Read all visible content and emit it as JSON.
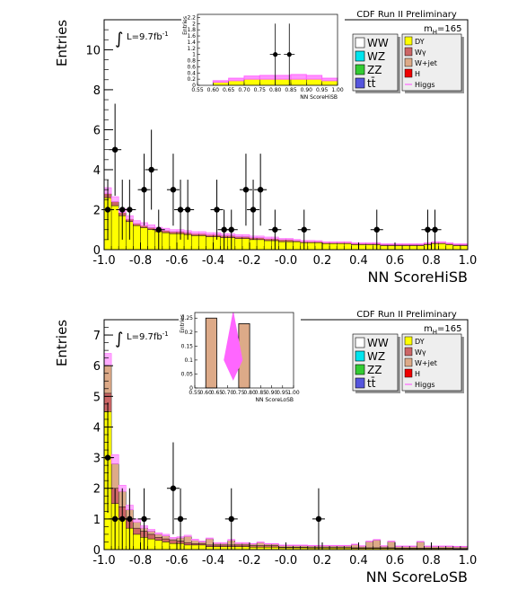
{
  "colors": {
    "WW": "#ffffff",
    "WZ": "#00e5ee",
    "ZZ": "#33cc33",
    "tt": "#5555dd",
    "DY": "#ffff00",
    "Wgamma": "#cc6666",
    "Wjet": "#ddaa88",
    "H": "#ee0000",
    "Higgs": "#ff66ff",
    "data": "#000000"
  },
  "chart_data": [
    {
      "type": "histogram",
      "title": "CDF Run II Preliminary",
      "xlabel": "NN ScoreHiSB",
      "ylabel": "Entries",
      "lumi_label": "L=9.7fb",
      "lumi_exp": "-1",
      "mass_label": "m",
      "mass_sub": "H",
      "mass_value": "=165",
      "xlim": [
        -1.0,
        1.0
      ],
      "ylim": [
        0,
        11.5
      ],
      "xticks": [
        "-1.0",
        "-0.8",
        "-0.6",
        "-0.4",
        "-0.2",
        "-0.0",
        "0.2",
        "0.4",
        "0.6",
        "0.8",
        "1.0"
      ],
      "yticks": [
        "0",
        "2",
        "4",
        "6",
        "8",
        "10"
      ],
      "legend_left": [
        "WW",
        "WZ",
        "ZZ",
        "tt̄"
      ],
      "legend_right": [
        "DY",
        "Wγ",
        "W+jet",
        "H",
        "Higgs"
      ],
      "background_bins": {
        "x_start": -1.0,
        "width": 0.04,
        "dy": [
          2.6,
          2.2,
          1.7,
          1.4,
          1.2,
          1.1,
          1.0,
          0.9,
          0.85,
          0.8,
          0.8,
          0.75,
          0.7,
          0.7,
          0.65,
          0.65,
          0.6,
          0.6,
          0.55,
          0.55,
          0.5,
          0.5,
          0.45,
          0.45,
          0.4,
          0.4,
          0.4,
          0.35,
          0.35,
          0.35,
          0.3,
          0.3,
          0.3,
          0.3,
          0.25,
          0.25,
          0.25,
          0.25,
          0.2,
          0.2,
          0.2,
          0.2,
          0.2,
          0.2,
          0.25,
          0.3,
          0.3,
          0.25,
          0.2,
          0.2
        ],
        "wgamma": [
          0.2,
          0.2,
          0.15,
          0.12,
          0.1,
          0.1,
          0.1,
          0.1,
          0.1,
          0.1,
          0.1,
          0.1,
          0.1,
          0.1,
          0.1,
          0.1,
          0.1,
          0.1,
          0.1,
          0.1,
          0.1,
          0.1,
          0.1,
          0.1,
          0.1,
          0.1,
          0.05,
          0.05,
          0.05,
          0.05,
          0.05,
          0.05,
          0.05,
          0.05,
          0.05,
          0.05,
          0.05,
          0.05,
          0.05,
          0.05,
          0.05,
          0.05,
          0.05,
          0.05,
          0.05,
          0.05,
          0.05,
          0.05,
          0.05,
          0.05
        ],
        "higgs": [
          0.3,
          0.25,
          0.2,
          0.18,
          0.15,
          0.15,
          0.14,
          0.12,
          0.12,
          0.1,
          0.1,
          0.1,
          0.1,
          0.1,
          0.1,
          0.1,
          0.1,
          0.1,
          0.1,
          0.1,
          0.08,
          0.08,
          0.08,
          0.08,
          0.06,
          0.06,
          0.06,
          0.06,
          0.06,
          0.05,
          0.05,
          0.05,
          0.05,
          0.05,
          0.05,
          0.05,
          0.05,
          0.05,
          0.05,
          0.05,
          0.05,
          0.05,
          0.05,
          0.05,
          0.05,
          0.05,
          0.05,
          0.05,
          0.05,
          0.05
        ]
      },
      "data_points": [
        {
          "x": -0.98,
          "y": 2,
          "err": 1.5
        },
        {
          "x": -0.94,
          "y": 5,
          "err": 2.3
        },
        {
          "x": -0.9,
          "y": 2,
          "err": 1.5
        },
        {
          "x": -0.86,
          "y": 2,
          "err": 1.5
        },
        {
          "x": -0.78,
          "y": 3,
          "err": 1.8
        },
        {
          "x": -0.74,
          "y": 4,
          "err": 2.0
        },
        {
          "x": -0.7,
          "y": 1,
          "err": 1.0
        },
        {
          "x": -0.62,
          "y": 3,
          "err": 1.8
        },
        {
          "x": -0.58,
          "y": 2,
          "err": 1.5
        },
        {
          "x": -0.54,
          "y": 2,
          "err": 1.5
        },
        {
          "x": -0.38,
          "y": 2,
          "err": 1.5
        },
        {
          "x": -0.34,
          "y": 1,
          "err": 1.0
        },
        {
          "x": -0.3,
          "y": 1,
          "err": 1.0
        },
        {
          "x": -0.22,
          "y": 3,
          "err": 1.8
        },
        {
          "x": -0.18,
          "y": 2,
          "err": 1.5
        },
        {
          "x": -0.14,
          "y": 3,
          "err": 1.8
        },
        {
          "x": -0.06,
          "y": 1,
          "err": 1.0
        },
        {
          "x": 0.1,
          "y": 1,
          "err": 1.0
        },
        {
          "x": 0.5,
          "y": 1,
          "err": 1.0
        },
        {
          "x": 0.78,
          "y": 1,
          "err": 1.0
        },
        {
          "x": 0.82,
          "y": 1,
          "err": 1.0
        }
      ],
      "inset": {
        "xlabel": "NN ScoreHiSB",
        "ylabel": "Entries",
        "xlim": [
          0.55,
          1.0
        ],
        "ylim": [
          0,
          2.3
        ],
        "xticks": [
          "0.55",
          "0.60",
          "0.65",
          "0.70",
          "0.75",
          "0.80",
          "0.85",
          "0.90",
          "0.95",
          "1.00"
        ],
        "yticks": [
          "0",
          "0.2",
          "0.4",
          "0.6",
          "0.8",
          "1",
          "1.2",
          "1.4",
          "1.6",
          "1.8",
          "2",
          "2.2"
        ],
        "background_bins": {
          "x_start": 0.6,
          "width": 0.05,
          "dy": [
            0.1,
            0.15,
            0.2,
            0.2,
            0.2,
            0.2,
            0.2,
            0.15
          ],
          "higgs": [
            0.05,
            0.08,
            0.1,
            0.12,
            0.12,
            0.15,
            0.12,
            0.08
          ]
        },
        "data_points": [
          {
            "x": 0.8,
            "y": 1,
            "err": 1.0
          },
          {
            "x": 0.845,
            "y": 1,
            "err": 1.0
          }
        ]
      }
    },
    {
      "type": "histogram",
      "title": "CDF Run II Preliminary",
      "xlabel": "NN ScoreLoSB",
      "ylabel": "Entries",
      "lumi_label": "L=9.7fb",
      "lumi_exp": "-1",
      "mass_label": "m",
      "mass_sub": "H",
      "mass_value": "=165",
      "xlim": [
        -1.0,
        1.0
      ],
      "ylim": [
        0,
        7.5
      ],
      "xticks": [
        "-1.0",
        "-0.8",
        "-0.6",
        "-0.4",
        "-0.2",
        "-0.0",
        "0.2",
        "0.4",
        "0.6",
        "0.8",
        "1.0"
      ],
      "yticks": [
        "0",
        "1",
        "2",
        "3",
        "4",
        "5",
        "6",
        "7"
      ],
      "legend_left": [
        "WW",
        "WZ",
        "ZZ",
        "tt̄"
      ],
      "legend_right": [
        "DY",
        "Wγ",
        "W+jet",
        "H",
        "Higgs"
      ],
      "background_bins": {
        "x_start": -1.0,
        "width": 0.04,
        "dy": [
          4.5,
          1.5,
          1.0,
          0.7,
          0.5,
          0.4,
          0.35,
          0.3,
          0.25,
          0.2,
          0.2,
          0.15,
          0.15,
          0.15,
          0.1,
          0.1,
          0.1,
          0.1,
          0.1,
          0.1,
          0.08,
          0.08,
          0.08,
          0.08,
          0.06,
          0.06,
          0.06,
          0.06,
          0.05,
          0.05,
          0.05,
          0.05,
          0.05,
          0.05,
          0.04,
          0.04,
          0.04,
          0.04,
          0.04,
          0.04,
          0.03,
          0.03,
          0.03,
          0.03,
          0.03,
          0.03,
          0.03,
          0.03,
          0.02,
          0.02
        ],
        "wgamma": [
          0.6,
          0.5,
          0.4,
          0.3,
          0.2,
          0.2,
          0.15,
          0.1,
          0.1,
          0.1,
          0.08,
          0.08,
          0.05,
          0.05,
          0.05,
          0.05,
          0.05,
          0.05,
          0.05,
          0.05,
          0.05,
          0.05,
          0.05,
          0.05,
          0.02,
          0.02,
          0.02,
          0.02,
          0.02,
          0.02,
          0.02,
          0.02,
          0.02,
          0.02,
          0.02,
          0.02,
          0.02,
          0.02,
          0.02,
          0.02,
          0.02,
          0.02,
          0.02,
          0.02,
          0.02,
          0.02,
          0.02,
          0.02,
          0.02,
          0.02
        ],
        "wjet": [
          0.9,
          0.8,
          0.5,
          0.3,
          0.2,
          0.1,
          0.1,
          0.1,
          0.1,
          0.05,
          0.1,
          0.2,
          0.1,
          0.05,
          0.2,
          0.05,
          0.05,
          0.15,
          0.05,
          0.05,
          0.05,
          0.1,
          0.05,
          0.05,
          0.05,
          0.05,
          0.05,
          0.05,
          0.05,
          0.05,
          0.05,
          0.05,
          0.05,
          0.05,
          0.1,
          0.05,
          0.2,
          0.25,
          0.05,
          0.2,
          0.05,
          0.05,
          0.05,
          0.2,
          0.05,
          0.05,
          0.05,
          0.05,
          0.05,
          0.05
        ],
        "higgs": [
          0.4,
          0.3,
          0.2,
          0.15,
          0.1,
          0.08,
          0.06,
          0.05,
          0.05,
          0.05,
          0.04,
          0.04,
          0.04,
          0.03,
          0.03,
          0.03,
          0.03,
          0.03,
          0.03,
          0.03,
          0.02,
          0.02,
          0.02,
          0.02,
          0.02,
          0.02,
          0.02,
          0.02,
          0.02,
          0.02,
          0.02,
          0.02,
          0.02,
          0.02,
          0.02,
          0.02,
          0.02,
          0.02,
          0.02,
          0.02,
          0.02,
          0.02,
          0.02,
          0.02,
          0.02,
          0.02,
          0.02,
          0.02,
          0.02,
          0.02
        ]
      },
      "data_points": [
        {
          "x": -0.98,
          "y": 3,
          "err": 1.8
        },
        {
          "x": -0.94,
          "y": 1,
          "err": 1.0
        },
        {
          "x": -0.9,
          "y": 1,
          "err": 1.0
        },
        {
          "x": -0.86,
          "y": 1,
          "err": 1.0
        },
        {
          "x": -0.78,
          "y": 1,
          "err": 1.0
        },
        {
          "x": -0.62,
          "y": 2,
          "err": 1.5
        },
        {
          "x": -0.58,
          "y": 1,
          "err": 1.0
        },
        {
          "x": -0.3,
          "y": 1,
          "err": 1.0
        },
        {
          "x": 0.18,
          "y": 1,
          "err": 1.0
        }
      ],
      "inset": {
        "xlabel": "NN ScoreLoSB",
        "ylabel": "Entries",
        "xlim": [
          0.55,
          1.0
        ],
        "ylim": [
          0,
          0.27
        ],
        "xticks": [
          "0.55",
          "0.60",
          "0.65",
          "0.70",
          "0.75",
          "0.80",
          "0.85",
          "0.90",
          "0.95",
          "1.00"
        ],
        "yticks": [
          "0",
          "0.05",
          "0.1",
          "0.15",
          "0.2",
          "0.25"
        ],
        "background_bins": {
          "x_start": 0.6,
          "width": 0.05,
          "wjet": [
            0.25,
            0.0,
            0.0,
            0.23,
            0.0,
            0.0,
            0.0,
            0.0
          ]
        },
        "higgs_spike": {
          "x": 0.725,
          "y": 0.27
        },
        "data_points": []
      }
    }
  ]
}
